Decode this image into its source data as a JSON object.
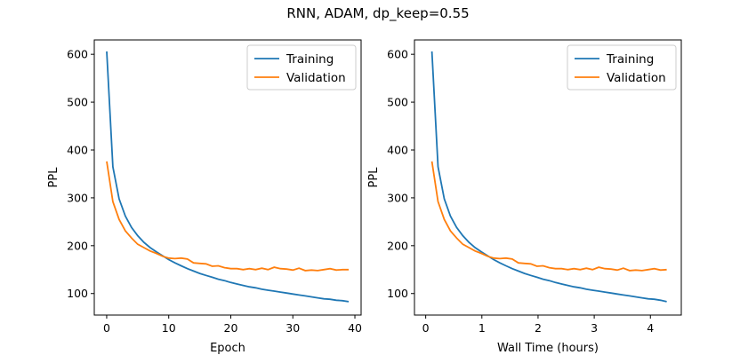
{
  "suptitle": "RNN, ADAM, dp_keep=0.55",
  "colors": {
    "training": "#1f77b4",
    "validation": "#ff7f0e"
  },
  "chart_data": [
    {
      "type": "line",
      "xlabel": "Epoch",
      "ylabel": "PPL",
      "xlim": [
        -2,
        41
      ],
      "ylim": [
        55,
        630
      ],
      "xticks": [
        0,
        10,
        20,
        30,
        40
      ],
      "yticks": [
        100,
        200,
        300,
        400,
        500,
        600
      ],
      "legend": "top-right",
      "grid": false,
      "x": [
        0,
        1,
        2,
        3,
        4,
        5,
        6,
        7,
        8,
        9,
        10,
        11,
        12,
        13,
        14,
        15,
        16,
        17,
        18,
        19,
        20,
        21,
        22,
        23,
        24,
        25,
        26,
        27,
        28,
        29,
        30,
        31,
        32,
        33,
        34,
        35,
        36,
        37,
        38,
        39
      ],
      "series": [
        {
          "name": "Training",
          "values": [
            606,
            365,
            298,
            262,
            238,
            221,
            207,
            196,
            187,
            179,
            171,
            164,
            158,
            152,
            147,
            142,
            138,
            134,
            130,
            127,
            123,
            120,
            117,
            114,
            112,
            109,
            107,
            105,
            103,
            101,
            99,
            97,
            95,
            93,
            91,
            89,
            88,
            86,
            85,
            83
          ]
        },
        {
          "name": "Validation",
          "values": [
            376,
            292,
            255,
            231,
            216,
            203,
            196,
            189,
            184,
            178,
            174,
            173,
            174,
            172,
            164,
            163,
            162,
            157,
            158,
            154,
            152,
            152,
            150,
            152,
            150,
            153,
            150,
            155,
            152,
            151,
            149,
            153,
            148,
            149,
            148,
            150,
            152,
            149,
            150,
            150
          ]
        }
      ]
    },
    {
      "type": "line",
      "xlabel": "Wall Time (hours)",
      "ylabel": "PPL",
      "xlim": [
        -0.2,
        4.55
      ],
      "ylim": [
        55,
        630
      ],
      "xticks": [
        0,
        1,
        2,
        3,
        4
      ],
      "yticks": [
        100,
        200,
        300,
        400,
        500,
        600
      ],
      "legend": "top-right",
      "grid": false,
      "x": [
        0.11,
        0.22,
        0.33,
        0.44,
        0.55,
        0.66,
        0.77,
        0.88,
        0.99,
        1.1,
        1.21,
        1.32,
        1.43,
        1.54,
        1.65,
        1.76,
        1.87,
        1.98,
        2.09,
        2.2,
        2.31,
        2.42,
        2.53,
        2.64,
        2.75,
        2.86,
        2.97,
        3.08,
        3.19,
        3.3,
        3.41,
        3.52,
        3.63,
        3.74,
        3.85,
        3.96,
        4.07,
        4.18,
        4.29
      ],
      "series": [
        {
          "name": "Training",
          "values": [
            606,
            365,
            298,
            262,
            238,
            221,
            207,
            196,
            187,
            179,
            171,
            164,
            158,
            152,
            147,
            142,
            138,
            134,
            130,
            127,
            123,
            120,
            117,
            114,
            112,
            109,
            107,
            105,
            103,
            101,
            99,
            97,
            95,
            93,
            91,
            89,
            88,
            86,
            83
          ]
        },
        {
          "name": "Validation",
          "values": [
            376,
            292,
            255,
            231,
            216,
            203,
            196,
            189,
            184,
            178,
            174,
            173,
            174,
            172,
            164,
            163,
            162,
            157,
            158,
            154,
            152,
            152,
            150,
            152,
            150,
            153,
            150,
            155,
            152,
            151,
            149,
            153,
            148,
            149,
            148,
            150,
            152,
            149,
            150
          ]
        }
      ]
    }
  ]
}
